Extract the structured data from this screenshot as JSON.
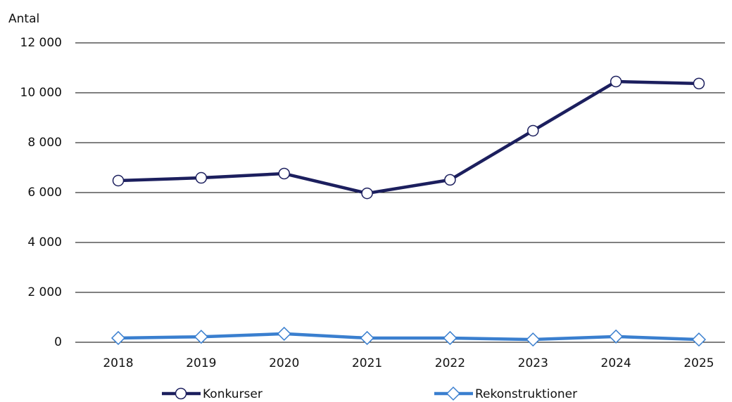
{
  "chart_data": {
    "type": "line",
    "y_label": "Antal",
    "categories": [
      "2018",
      "2019",
      "2020",
      "2021",
      "2022",
      "2023",
      "2024",
      "2025"
    ],
    "series": [
      {
        "name": "Konkurser",
        "color": "#1c1f5e",
        "marker": "circle",
        "values": [
          6480,
          6590,
          6760,
          5970,
          6510,
          8480,
          10450,
          10370
        ]
      },
      {
        "name": "Rekonstruktioner",
        "color": "#3a7fcf",
        "marker": "diamond",
        "values": [
          170,
          220,
          340,
          170,
          170,
          110,
          230,
          110
        ]
      }
    ],
    "ylim": [
      0,
      12000
    ],
    "yticks": [
      0,
      {
        "value": 2000,
        "label": "2 000"
      },
      {
        "value": 4000,
        "label": "4 000"
      },
      {
        "value": 6000,
        "label": "6 000"
      },
      {
        "value": 8000,
        "label": "8 000"
      },
      {
        "value": 10000,
        "label": "10 000"
      },
      {
        "value": 12000,
        "label": "12 000"
      }
    ],
    "grid": true,
    "legend": "bottom"
  }
}
